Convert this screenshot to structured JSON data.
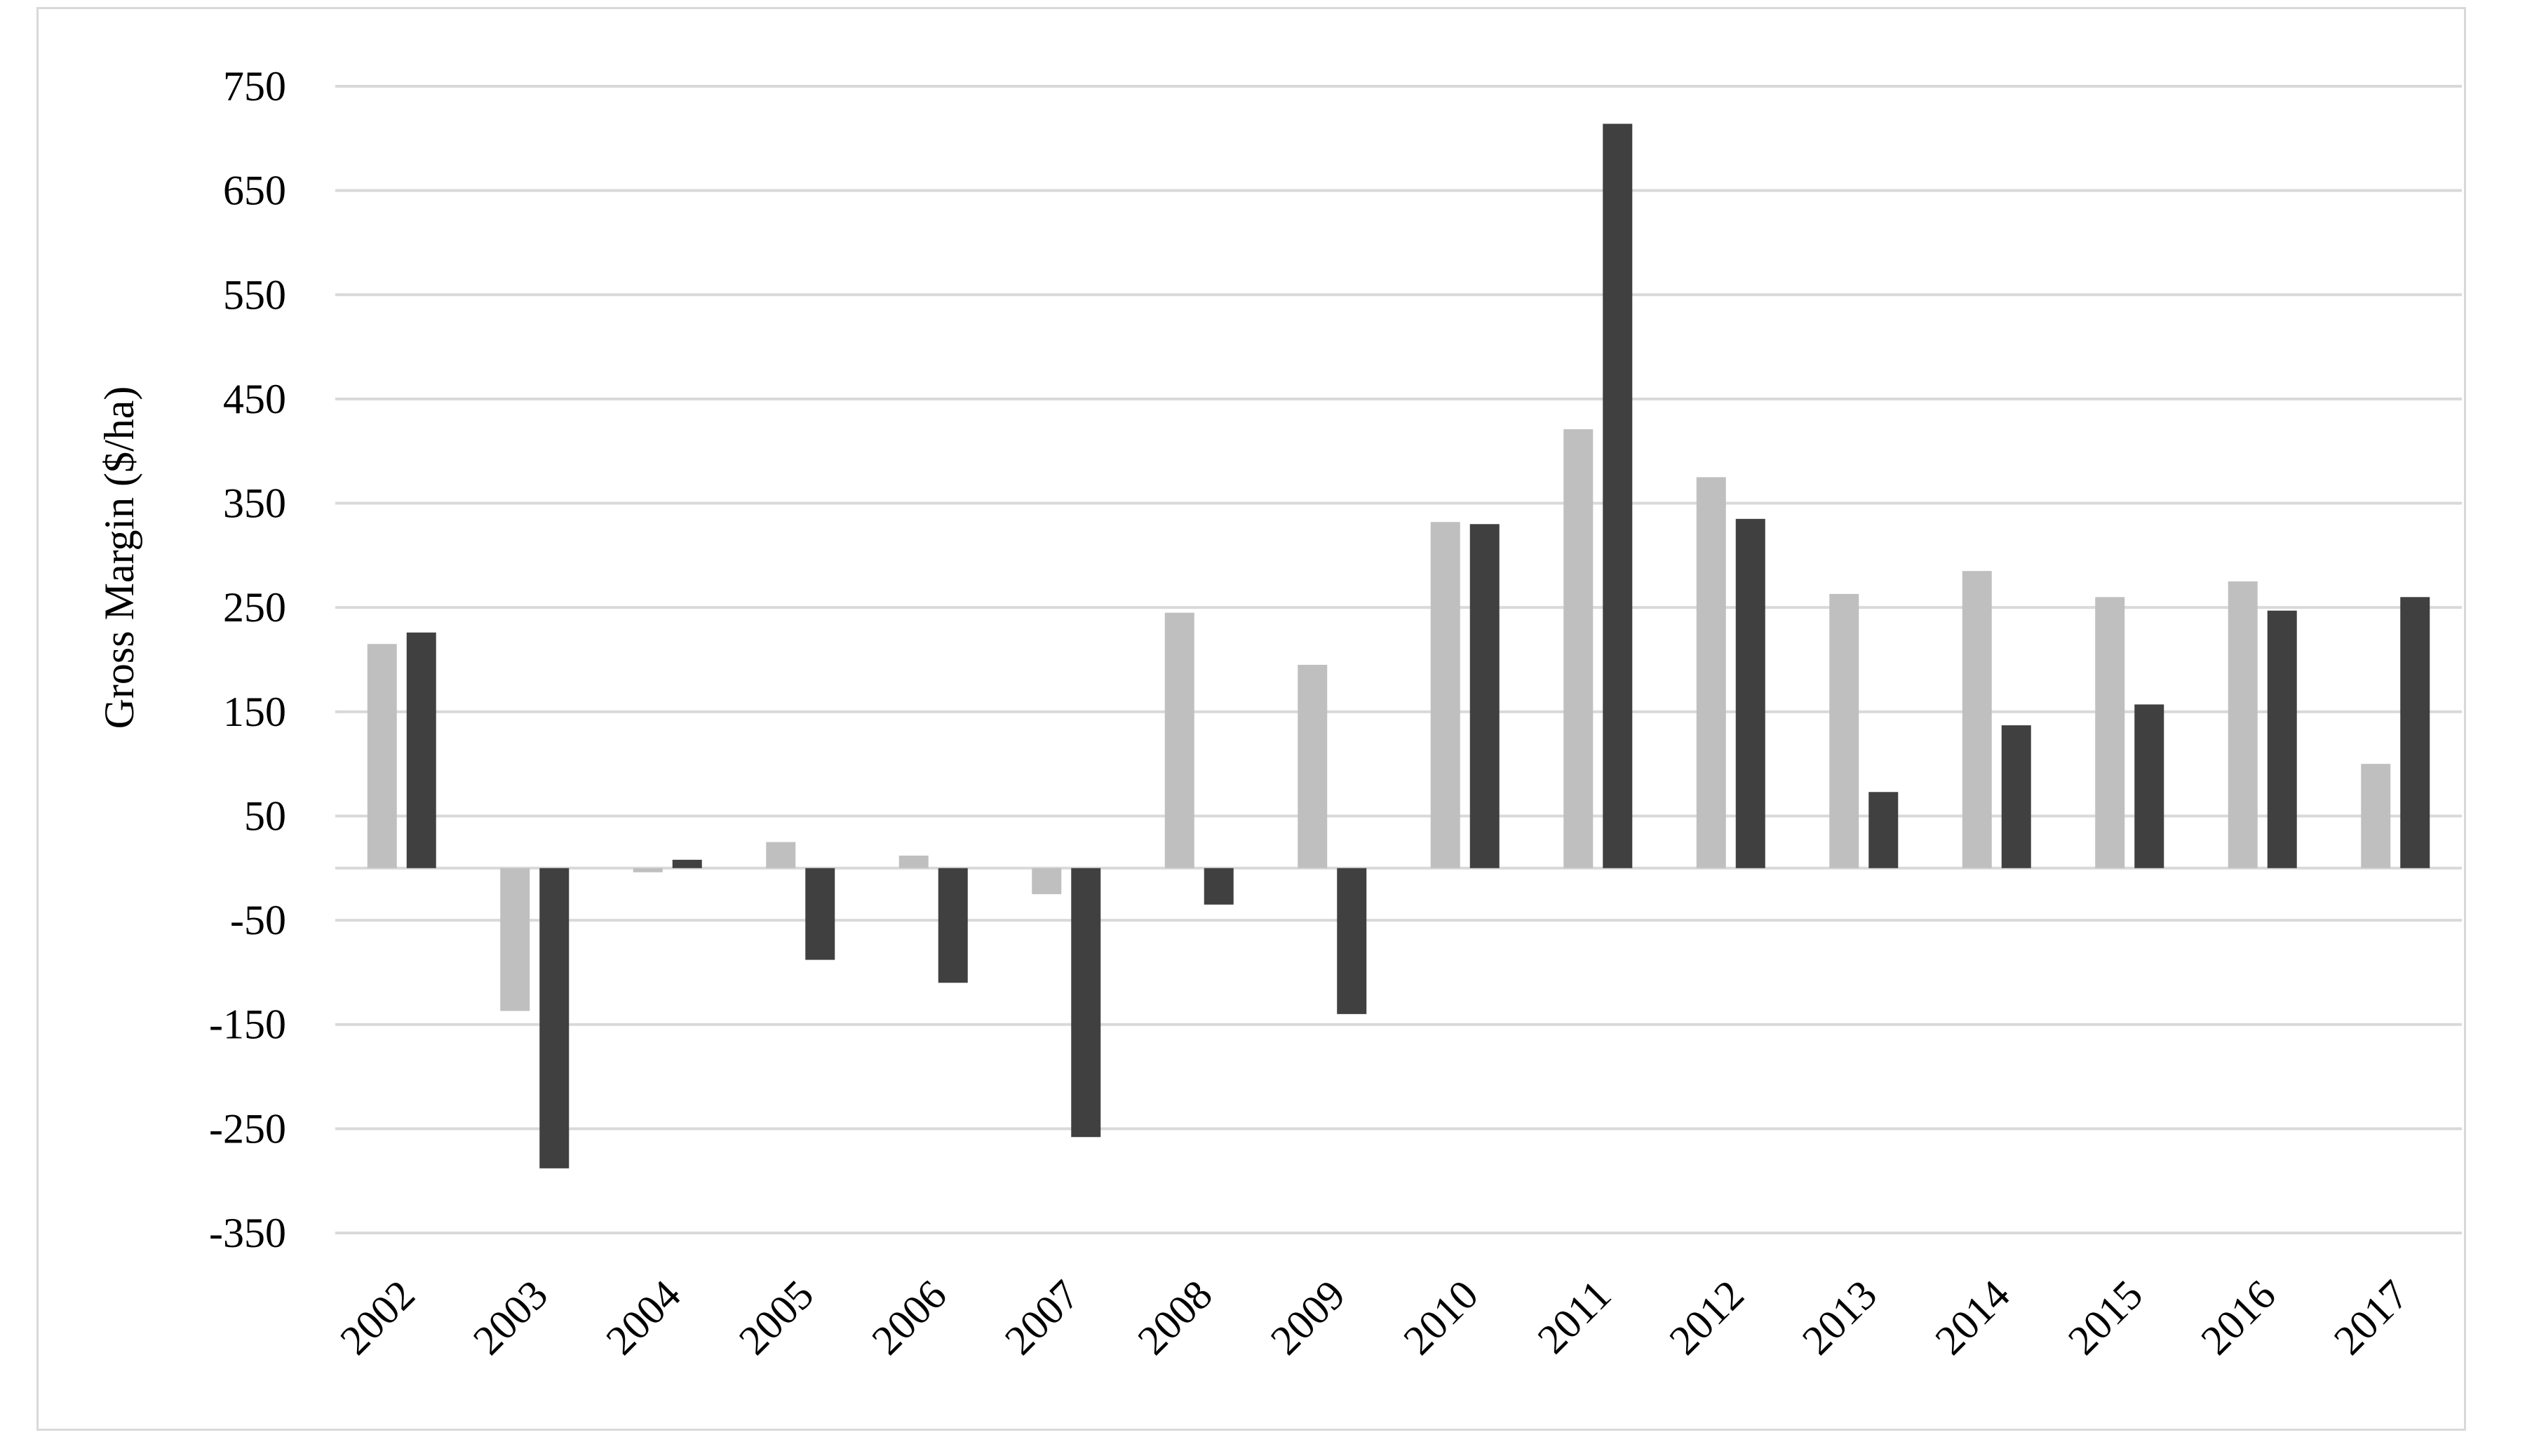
{
  "chart_data": {
    "type": "bar",
    "title": "",
    "xlabel": "",
    "ylabel": "Gross Margin ($/ha)",
    "ylim": [
      -350,
      750
    ],
    "yticks": [
      750,
      650,
      550,
      450,
      350,
      250,
      150,
      50,
      -50,
      -150,
      -250,
      -350
    ],
    "grid": true,
    "legend": "none",
    "categories": [
      "2002",
      "2003",
      "2004",
      "2005",
      "2006",
      "2007",
      "2008",
      "2009",
      "2010",
      "2011",
      "2012",
      "2013",
      "2014",
      "2015",
      "2016",
      "2017"
    ],
    "series": [
      {
        "color": "#bfbfbf",
        "values": [
          215,
          -137,
          -4,
          25,
          12,
          -25,
          245,
          195,
          332,
          421,
          375,
          263,
          285,
          260,
          275,
          100
        ]
      },
      {
        "color": "#404040",
        "values": [
          226,
          -288,
          8,
          -88,
          -110,
          -258,
          -35,
          -140,
          330,
          714,
          335,
          73,
          137,
          157,
          247,
          260
        ]
      }
    ]
  }
}
